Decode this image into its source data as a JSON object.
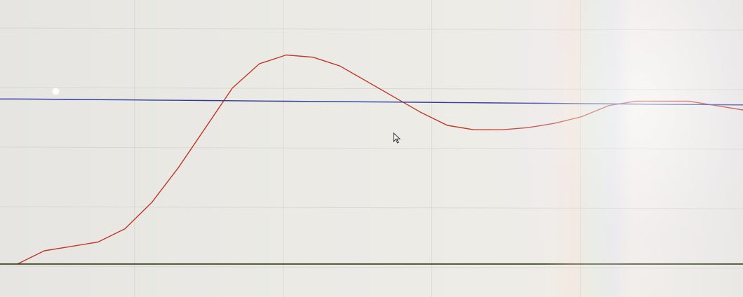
{
  "chart_data": {
    "type": "line",
    "title": "",
    "xlabel": "",
    "ylabel": "",
    "grid": true,
    "legend": "none",
    "x": [
      0,
      1,
      2,
      3,
      4,
      5,
      6,
      7,
      8,
      9,
      10,
      11,
      12,
      13,
      14,
      15,
      16,
      17,
      18,
      19,
      20,
      21,
      22,
      23,
      24,
      25,
      26,
      27
    ],
    "series": [
      {
        "color": "#c0392b",
        "values": [
          0.0,
          0.06,
          0.08,
          0.1,
          0.16,
          0.28,
          0.44,
          0.62,
          0.8,
          0.91,
          0.95,
          0.94,
          0.9,
          0.83,
          0.76,
          0.69,
          0.63,
          0.61,
          0.61,
          0.62,
          0.64,
          0.67,
          0.72,
          0.74,
          0.74,
          0.74,
          0.72,
          0.7
        ]
      },
      {
        "color": "#2b3a9c",
        "values": [
          0.75,
          0.749,
          0.748,
          0.747,
          0.746,
          0.745,
          0.744,
          0.743,
          0.742,
          0.741,
          0.74,
          0.739,
          0.738,
          0.737,
          0.736,
          0.735,
          0.734,
          0.733,
          0.732,
          0.731,
          0.73,
          0.729,
          0.728,
          0.727,
          0.726,
          0.725,
          0.724,
          0.723
        ]
      },
      {
        "color": "#2f3a16",
        "values": [
          0,
          0,
          0,
          0,
          0,
          0,
          0,
          0,
          0,
          0,
          0,
          0,
          0,
          0,
          0,
          0,
          0,
          0,
          0,
          0,
          0,
          0,
          0,
          0,
          0,
          0,
          0,
          0
        ]
      }
    ],
    "xlim": [
      -0.65,
      27
    ],
    "ylim": [
      -0.15,
      1.2
    ]
  },
  "colors": {
    "grid": "#cfcdc7"
  },
  "icons": {
    "cursor": "mouse-pointer-icon",
    "marker": "white-dot-marker"
  }
}
